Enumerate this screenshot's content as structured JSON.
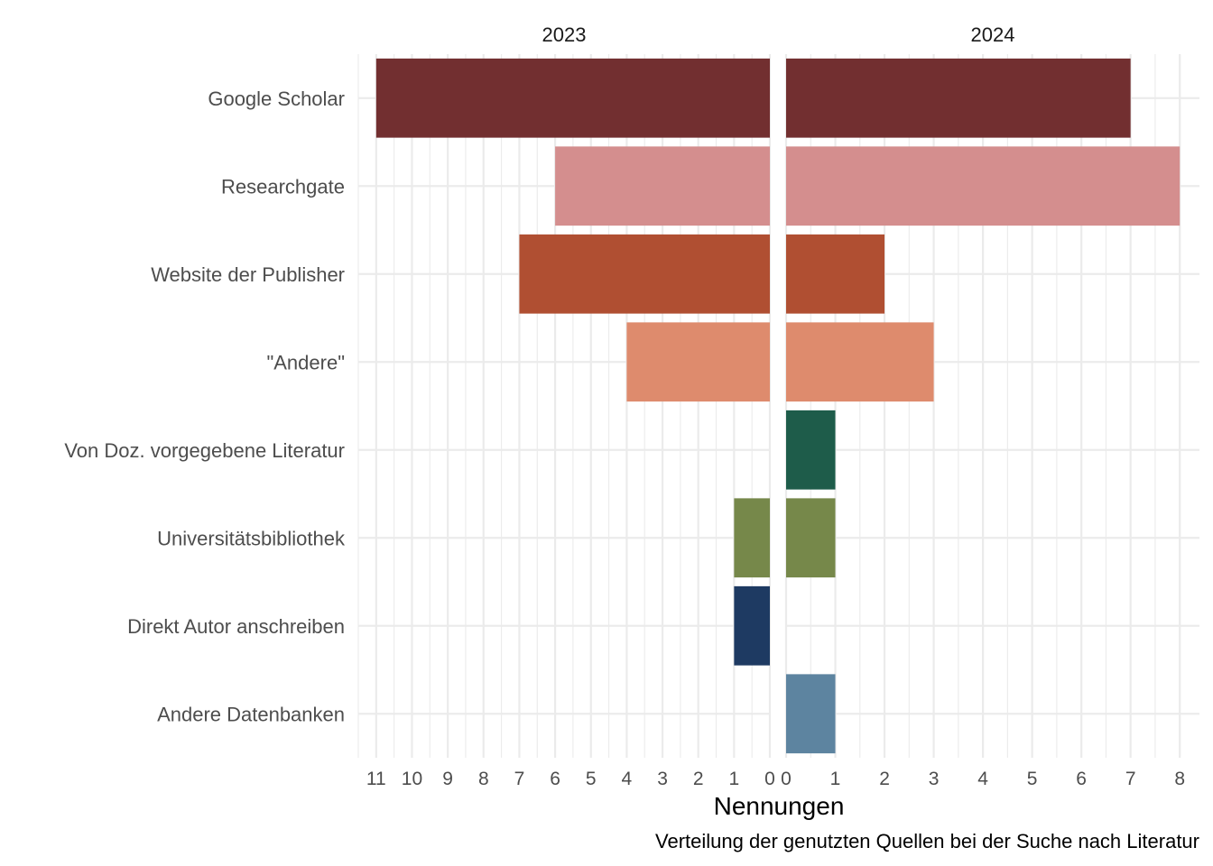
{
  "chart_data": {
    "type": "bar",
    "orientation": "horizontal",
    "layout": "facet-back-to-back",
    "categories": [
      "Google Scholar",
      "Researchgate",
      "Website der Publisher",
      "\"Andere\"",
      "Von Doz. vorgegebene Literatur",
      "Universitätsbibliothek",
      "Direkt Autor anschreiben",
      "Andere Datenbanken"
    ],
    "colors": [
      "#722F30",
      "#D48E8E",
      "#B04F32",
      "#DE8B6D",
      "#1E5C4A",
      "#76884A",
      "#1E3A62",
      "#5D84A0"
    ],
    "panels": [
      {
        "title": "2023",
        "xlim": [
          0,
          11.5
        ],
        "reversed": true,
        "ticks": [
          "11",
          "10",
          "9",
          "8",
          "7",
          "6",
          "5",
          "4",
          "3",
          "2",
          "1",
          "0"
        ],
        "tick_values": [
          11,
          10,
          9,
          8,
          7,
          6,
          5,
          4,
          3,
          2,
          1,
          0
        ],
        "values": [
          11,
          6,
          7,
          4,
          0,
          1,
          1,
          0
        ]
      },
      {
        "title": "2024",
        "xlim": [
          0,
          8.4
        ],
        "reversed": false,
        "ticks": [
          "0",
          "1",
          "2",
          "3",
          "4",
          "5",
          "6",
          "7",
          "8"
        ],
        "tick_values": [
          0,
          1,
          2,
          3,
          4,
          5,
          6,
          7,
          8
        ],
        "values": [
          7,
          8,
          2,
          3,
          1,
          1,
          0,
          1
        ]
      }
    ],
    "xlabel": "Nennungen",
    "caption": "Verteilung der genutzten Quellen bei der Suche nach Literatur",
    "grid": true,
    "legend": "none"
  }
}
